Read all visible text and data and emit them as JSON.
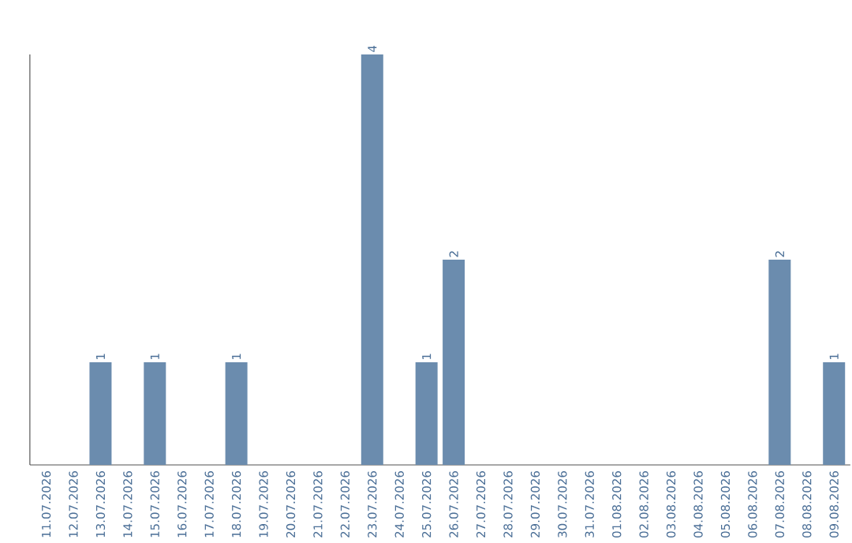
{
  "chart_data": {
    "type": "bar",
    "categories": [
      "11.07.2026",
      "12.07.2026",
      "13.07.2026",
      "14.07.2026",
      "15.07.2026",
      "16.07.2026",
      "17.07.2026",
      "18.07.2026",
      "19.07.2026",
      "20.07.2026",
      "21.07.2026",
      "22.07.2026",
      "23.07.2026",
      "24.07.2026",
      "25.07.2026",
      "26.07.2026",
      "27.07.2026",
      "28.07.2026",
      "29.07.2026",
      "30.07.2026",
      "31.07.2026",
      "01.08.2026",
      "02.08.2026",
      "03.08.2026",
      "04.08.2026",
      "05.08.2026",
      "06.08.2026",
      "07.08.2026",
      "08.08.2026",
      "09.08.2026"
    ],
    "values": [
      0,
      0,
      1,
      0,
      1,
      0,
      0,
      1,
      0,
      0,
      0,
      0,
      4,
      0,
      1,
      2,
      0,
      0,
      0,
      0,
      0,
      0,
      0,
      0,
      0,
      0,
      0,
      2,
      0,
      1
    ],
    "value_labels": [
      null,
      null,
      "1",
      null,
      "1",
      null,
      null,
      "1",
      null,
      null,
      null,
      null,
      "4",
      null,
      "1",
      "2",
      null,
      null,
      null,
      null,
      null,
      null,
      null,
      null,
      null,
      null,
      null,
      "2",
      null,
      "1"
    ],
    "color": "#6b8cae",
    "ylim": [
      0,
      4
    ],
    "tick_labels": "x",
    "grid": false
  }
}
